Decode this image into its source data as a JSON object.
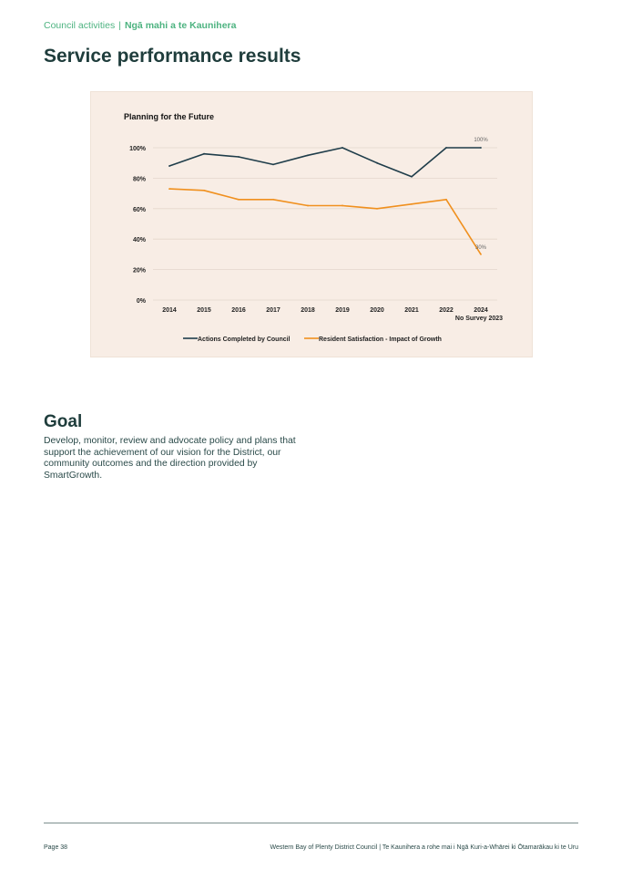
{
  "header": {
    "section": "Council activities",
    "separator": "|",
    "section_maori": "Ngā mahi a te Kaunihera"
  },
  "page_title": "Service performance results",
  "chart_data": {
    "type": "line",
    "title": "Planning for the Future",
    "categories": [
      "2014",
      "2015",
      "2016",
      "2017",
      "2018",
      "2019",
      "2020",
      "2021",
      "2022",
      "2024"
    ],
    "category_note": "No Survey 2023",
    "yticks": [
      "0%",
      "20%",
      "40%",
      "60%",
      "80%",
      "100%"
    ],
    "ylim": [
      0,
      100
    ],
    "series": [
      {
        "name": "Actions Completed by Council",
        "color": "#1f3d4a",
        "values": [
          88,
          96,
          94,
          89,
          95,
          100,
          90,
          81,
          100,
          100
        ]
      },
      {
        "name": "Resident Satisfaction - Impact of Growth",
        "color": "#f0901e",
        "values": [
          73,
          72,
          66,
          66,
          62,
          62,
          60,
          63,
          66,
          30
        ]
      }
    ],
    "data_labels": [
      "100%",
      "30%"
    ],
    "legend_position": "bottom"
  },
  "goal": {
    "heading": "Goal",
    "text": "Develop, monitor, review and advocate policy and plans that support the achievement of our vision for the District, our community outcomes and the direction provided by SmartGrowth."
  },
  "footer": {
    "page": "Page 38",
    "org": "Western Bay of Plenty District Council | Te Kaunihera a rohe mai i Ngā Kuri-a-Whārei ki Ōtamarākau ki te Uru"
  }
}
